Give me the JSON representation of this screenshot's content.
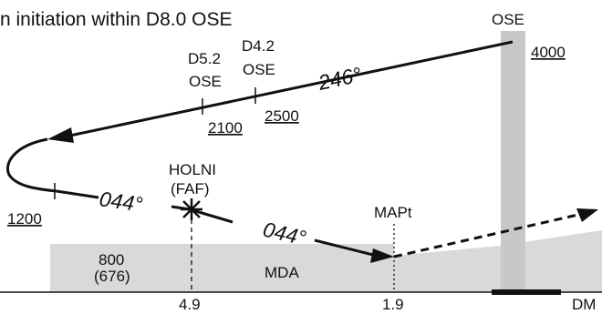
{
  "title": "n initiation within D8.0 OSE",
  "facility": {
    "name": "OSE",
    "altitude": "4000"
  },
  "fixes": {
    "d52": {
      "line1": "D5.2",
      "line2": "OSE",
      "altitude": "2100"
    },
    "d42": {
      "line1": "D4.2",
      "line2": "OSE",
      "altitude": "2500"
    },
    "holni": {
      "name": "HOLNI",
      "role": "(FAF)"
    },
    "mapt": {
      "name": "MAPt"
    }
  },
  "headings": {
    "outbound": "246°",
    "inbound_1": "044°",
    "inbound_2": "044°"
  },
  "altitudes": {
    "turn": "1200",
    "mda_alt": "800",
    "mda_height": "(676)",
    "mda_label": "MDA"
  },
  "distance_axis": {
    "ticks": [
      "4.9",
      "1.9"
    ],
    "unit": "DM"
  },
  "colors": {
    "line": "#111111",
    "shade": "#d9d9d9",
    "column": "#c8c8c8"
  }
}
